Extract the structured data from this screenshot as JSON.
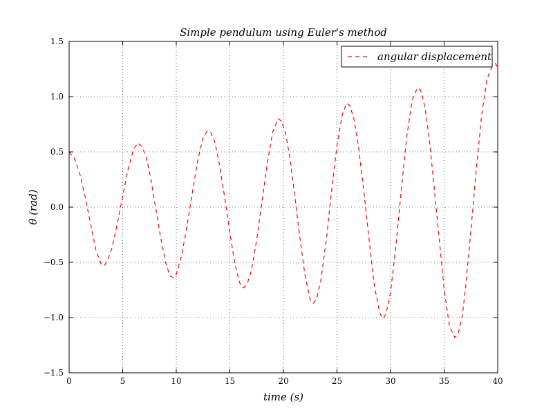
{
  "chart_data": {
    "type": "line",
    "title": "Simple pendulum using Euler's method",
    "xlabel": "time (s)",
    "ylabel": "θ (rad)",
    "xlim": [
      0,
      40
    ],
    "ylim": [
      -1.5,
      1.5
    ],
    "grid": true,
    "legend_position": "top-right",
    "x_ticks": [
      0,
      5,
      10,
      15,
      20,
      25,
      30,
      35,
      40
    ],
    "y_ticks": [
      -1.5,
      -1.0,
      -0.5,
      0.0,
      0.5,
      1.0,
      1.5
    ],
    "x_tick_labels": [
      "0",
      "5",
      "10",
      "15",
      "20",
      "25",
      "30",
      "35",
      "40"
    ],
    "y_tick_labels": [
      "−1.5",
      "−1.0",
      "−0.5",
      "0.0",
      "0.5",
      "1.0",
      "1.5"
    ],
    "series": [
      {
        "name": "angular displacement",
        "color": "#ff0000",
        "line_style": "dashed",
        "points": [
          [
            0.0,
            0.5
          ],
          [
            0.5,
            0.44
          ],
          [
            1.0,
            0.3
          ],
          [
            1.5,
            0.09
          ],
          [
            2.0,
            -0.15
          ],
          [
            2.5,
            -0.39
          ],
          [
            3.0,
            -0.52
          ],
          [
            3.3,
            -0.53
          ],
          [
            3.6,
            -0.48
          ],
          [
            4.0,
            -0.37
          ],
          [
            4.5,
            -0.15
          ],
          [
            5.0,
            0.1
          ],
          [
            5.5,
            0.34
          ],
          [
            6.0,
            0.52
          ],
          [
            6.4,
            0.58
          ],
          [
            6.8,
            0.55
          ],
          [
            7.2,
            0.45
          ],
          [
            7.6,
            0.27
          ],
          [
            8.0,
            0.04
          ],
          [
            8.5,
            -0.25
          ],
          [
            9.0,
            -0.5
          ],
          [
            9.4,
            -0.62
          ],
          [
            9.7,
            -0.64
          ],
          [
            10.0,
            -0.61
          ],
          [
            10.5,
            -0.44
          ],
          [
            11.0,
            -0.17
          ],
          [
            11.5,
            0.13
          ],
          [
            12.0,
            0.42
          ],
          [
            12.5,
            0.63
          ],
          [
            12.9,
            0.69
          ],
          [
            13.2,
            0.68
          ],
          [
            13.6,
            0.59
          ],
          [
            14.0,
            0.4
          ],
          [
            14.5,
            0.1
          ],
          [
            15.0,
            -0.23
          ],
          [
            15.5,
            -0.53
          ],
          [
            16.0,
            -0.71
          ],
          [
            16.3,
            -0.73
          ],
          [
            16.6,
            -0.7
          ],
          [
            17.0,
            -0.58
          ],
          [
            17.5,
            -0.3
          ],
          [
            18.0,
            0.05
          ],
          [
            18.5,
            0.4
          ],
          [
            19.0,
            0.68
          ],
          [
            19.5,
            0.8
          ],
          [
            19.8,
            0.78
          ],
          [
            20.2,
            0.67
          ],
          [
            20.6,
            0.45
          ],
          [
            21.0,
            0.15
          ],
          [
            21.5,
            -0.25
          ],
          [
            22.0,
            -0.61
          ],
          [
            22.5,
            -0.84
          ],
          [
            22.8,
            -0.87
          ],
          [
            23.1,
            -0.83
          ],
          [
            23.5,
            -0.66
          ],
          [
            24.0,
            -0.3
          ],
          [
            24.5,
            0.15
          ],
          [
            25.0,
            0.56
          ],
          [
            25.5,
            0.84
          ],
          [
            25.9,
            0.94
          ],
          [
            26.2,
            0.92
          ],
          [
            26.6,
            0.79
          ],
          [
            27.0,
            0.55
          ],
          [
            27.5,
            0.15
          ],
          [
            28.0,
            -0.3
          ],
          [
            28.5,
            -0.72
          ],
          [
            29.0,
            -0.96
          ],
          [
            29.3,
            -1.01
          ],
          [
            29.6,
            -0.96
          ],
          [
            30.0,
            -0.77
          ],
          [
            30.5,
            -0.35
          ],
          [
            31.0,
            0.15
          ],
          [
            31.5,
            0.63
          ],
          [
            32.0,
            0.96
          ],
          [
            32.5,
            1.08
          ],
          [
            32.8,
            1.06
          ],
          [
            33.2,
            0.91
          ],
          [
            33.6,
            0.63
          ],
          [
            34.0,
            0.25
          ],
          [
            34.5,
            -0.25
          ],
          [
            35.0,
            -0.74
          ],
          [
            35.5,
            -1.08
          ],
          [
            36.0,
            -1.18
          ],
          [
            36.3,
            -1.15
          ],
          [
            36.7,
            -0.98
          ],
          [
            37.0,
            -0.73
          ],
          [
            37.5,
            -0.21
          ],
          [
            38.0,
            0.34
          ],
          [
            38.5,
            0.83
          ],
          [
            39.0,
            1.16
          ],
          [
            39.5,
            1.28
          ],
          [
            39.8,
            1.3
          ],
          [
            40.0,
            1.26
          ]
        ]
      }
    ]
  }
}
